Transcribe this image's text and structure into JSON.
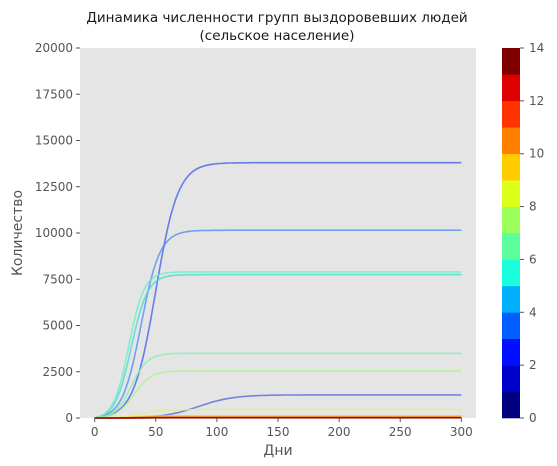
{
  "chart_data": {
    "type": "line",
    "title": "Динамика численности групп выздоровевших людей",
    "subtitle": "(сельское население)",
    "xlabel": "Дни",
    "ylabel": "Количество",
    "xlim": [
      -12,
      312
    ],
    "ylim": [
      0,
      20000
    ],
    "x_ticks": [
      0,
      50,
      100,
      150,
      200,
      250,
      300
    ],
    "y_ticks": [
      0,
      2500,
      5000,
      7500,
      10000,
      12500,
      15000,
      17500,
      20000
    ],
    "background": "#e5e5e5",
    "grid": false,
    "x_range": [
      0,
      300
    ],
    "colorbar": {
      "ticks": [
        0,
        2,
        4,
        6,
        8,
        10,
        12,
        14
      ],
      "range": [
        0,
        14
      ],
      "colors": [
        "#000080",
        "#0000cd",
        "#0010ff",
        "#0060ff",
        "#00b0ff",
        "#19ffde",
        "#5cff9b",
        "#9bff5c",
        "#deff19",
        "#ffcc00",
        "#ff8000",
        "#ff3300",
        "#de0000",
        "#800000"
      ]
    },
    "series": [
      {
        "group": 3,
        "color": "#5060e0",
        "final": 1250,
        "midpoint": 85,
        "rate": 0.07
      },
      {
        "group": 4,
        "color": "#3a5ae8",
        "final": 13800,
        "midpoint": 50,
        "rate": 0.11
      },
      {
        "group": 5,
        "color": "#4a8af0",
        "final": 10150,
        "midpoint": 38,
        "rate": 0.13
      },
      {
        "group": 6,
        "color": "#40d8d8",
        "final": 7750,
        "midpoint": 30,
        "rate": 0.15
      },
      {
        "group": 7,
        "color": "#60f0c0",
        "final": 7900,
        "midpoint": 28,
        "rate": 0.16
      },
      {
        "group": 8,
        "color": "#80f0b0",
        "final": 3500,
        "midpoint": 30,
        "rate": 0.15
      },
      {
        "group": 9,
        "color": "#a8f090",
        "final": 2550,
        "midpoint": 32,
        "rate": 0.14
      },
      {
        "group": 10,
        "color": "#e0f080",
        "final": 450,
        "midpoint": 38,
        "rate": 0.12
      },
      {
        "group": 11,
        "color": "#ffcc00",
        "final": 120,
        "midpoint": 35,
        "rate": 0.12
      },
      {
        "group": 12,
        "color": "#ff6000",
        "final": 40,
        "midpoint": 35,
        "rate": 0.12
      },
      {
        "group": 13,
        "color": "#cc0000",
        "final": 20,
        "midpoint": 35,
        "rate": 0.12
      },
      {
        "group": 14,
        "color": "#800000",
        "final": 10,
        "midpoint": 35,
        "rate": 0.12
      }
    ]
  }
}
